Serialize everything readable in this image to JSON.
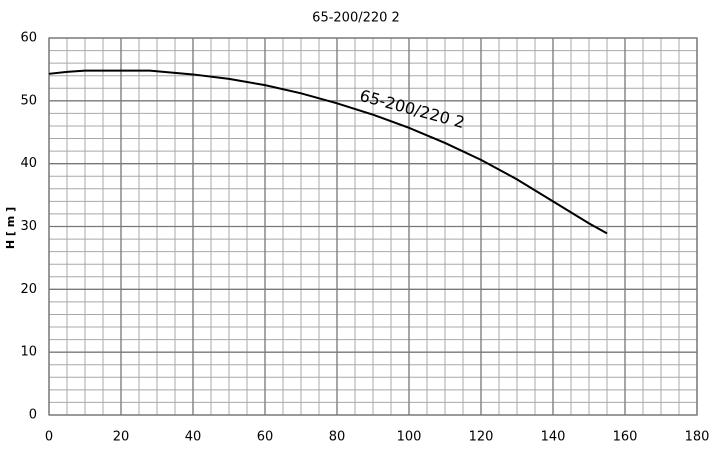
{
  "chart_data": {
    "type": "line",
    "title": "65-200/220 2",
    "y_label": "H [ m ]",
    "x": [
      0,
      5,
      10,
      20,
      28,
      40,
      50,
      60,
      70,
      80,
      90,
      100,
      110,
      120,
      130,
      140,
      150,
      155
    ],
    "series": [
      {
        "name": "65-200/220 2",
        "color": "#000000",
        "values": [
          54.3,
          54.6,
          54.8,
          54.8,
          54.8,
          54.2,
          53.5,
          52.5,
          51.2,
          49.6,
          47.8,
          45.7,
          43.3,
          40.6,
          37.5,
          34.0,
          30.5,
          28.9
        ]
      }
    ],
    "xlim": [
      0,
      180
    ],
    "xticks": [
      0,
      20,
      40,
      60,
      80,
      100,
      120,
      140,
      160,
      180
    ],
    "ylim": [
      0,
      60
    ],
    "yticks": [
      0,
      10,
      20,
      30,
      40,
      50,
      60
    ],
    "grid": true
  }
}
